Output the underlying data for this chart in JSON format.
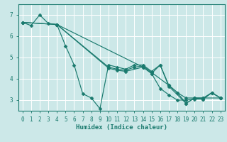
{
  "xlabel": "Humidex (Indice chaleur)",
  "bg_color": "#cce8e8",
  "grid_color": "#ffffff",
  "line_color": "#1a7a6e",
  "xlim": [
    -0.5,
    23.5
  ],
  "ylim": [
    2.5,
    7.5
  ],
  "yticks": [
    3,
    4,
    5,
    6,
    7
  ],
  "xticks": [
    0,
    1,
    2,
    3,
    4,
    5,
    6,
    7,
    8,
    9,
    10,
    11,
    12,
    13,
    14,
    15,
    16,
    17,
    18,
    19,
    20,
    21,
    22,
    23
  ],
  "line1_x": [
    0,
    1,
    2,
    3,
    4,
    5,
    6,
    7,
    8,
    9,
    10,
    11,
    12,
    13,
    14,
    15,
    16,
    17,
    18,
    19,
    20,
    21,
    22,
    23
  ],
  "line1_y": [
    6.65,
    6.5,
    7.0,
    6.6,
    6.55,
    5.55,
    4.65,
    3.3,
    3.1,
    2.6,
    4.65,
    4.55,
    4.45,
    4.65,
    4.65,
    4.35,
    4.65,
    3.7,
    3.35,
    3.1,
    3.1,
    3.1,
    3.35,
    3.1
  ],
  "line2_x": [
    0,
    4,
    10,
    11,
    12,
    13,
    14,
    15,
    17,
    18,
    19,
    20,
    21,
    23
  ],
  "line2_y": [
    6.65,
    6.55,
    4.55,
    4.45,
    4.4,
    4.55,
    4.6,
    4.3,
    3.7,
    3.35,
    2.85,
    3.1,
    3.1,
    3.1
  ],
  "line3_x": [
    0,
    4,
    14,
    15,
    16,
    17,
    18,
    19,
    20,
    21,
    22,
    23
  ],
  "line3_y": [
    6.65,
    6.55,
    4.55,
    4.25,
    3.55,
    3.25,
    3.0,
    3.0,
    3.05,
    3.05,
    3.35,
    3.1
  ],
  "line4_x": [
    4,
    10,
    11,
    12,
    14,
    15,
    16,
    17,
    19,
    20,
    21,
    22,
    23
  ],
  "line4_y": [
    6.55,
    4.5,
    4.4,
    4.35,
    4.55,
    4.25,
    4.65,
    3.65,
    2.85,
    3.1,
    3.05,
    3.35,
    3.1
  ]
}
